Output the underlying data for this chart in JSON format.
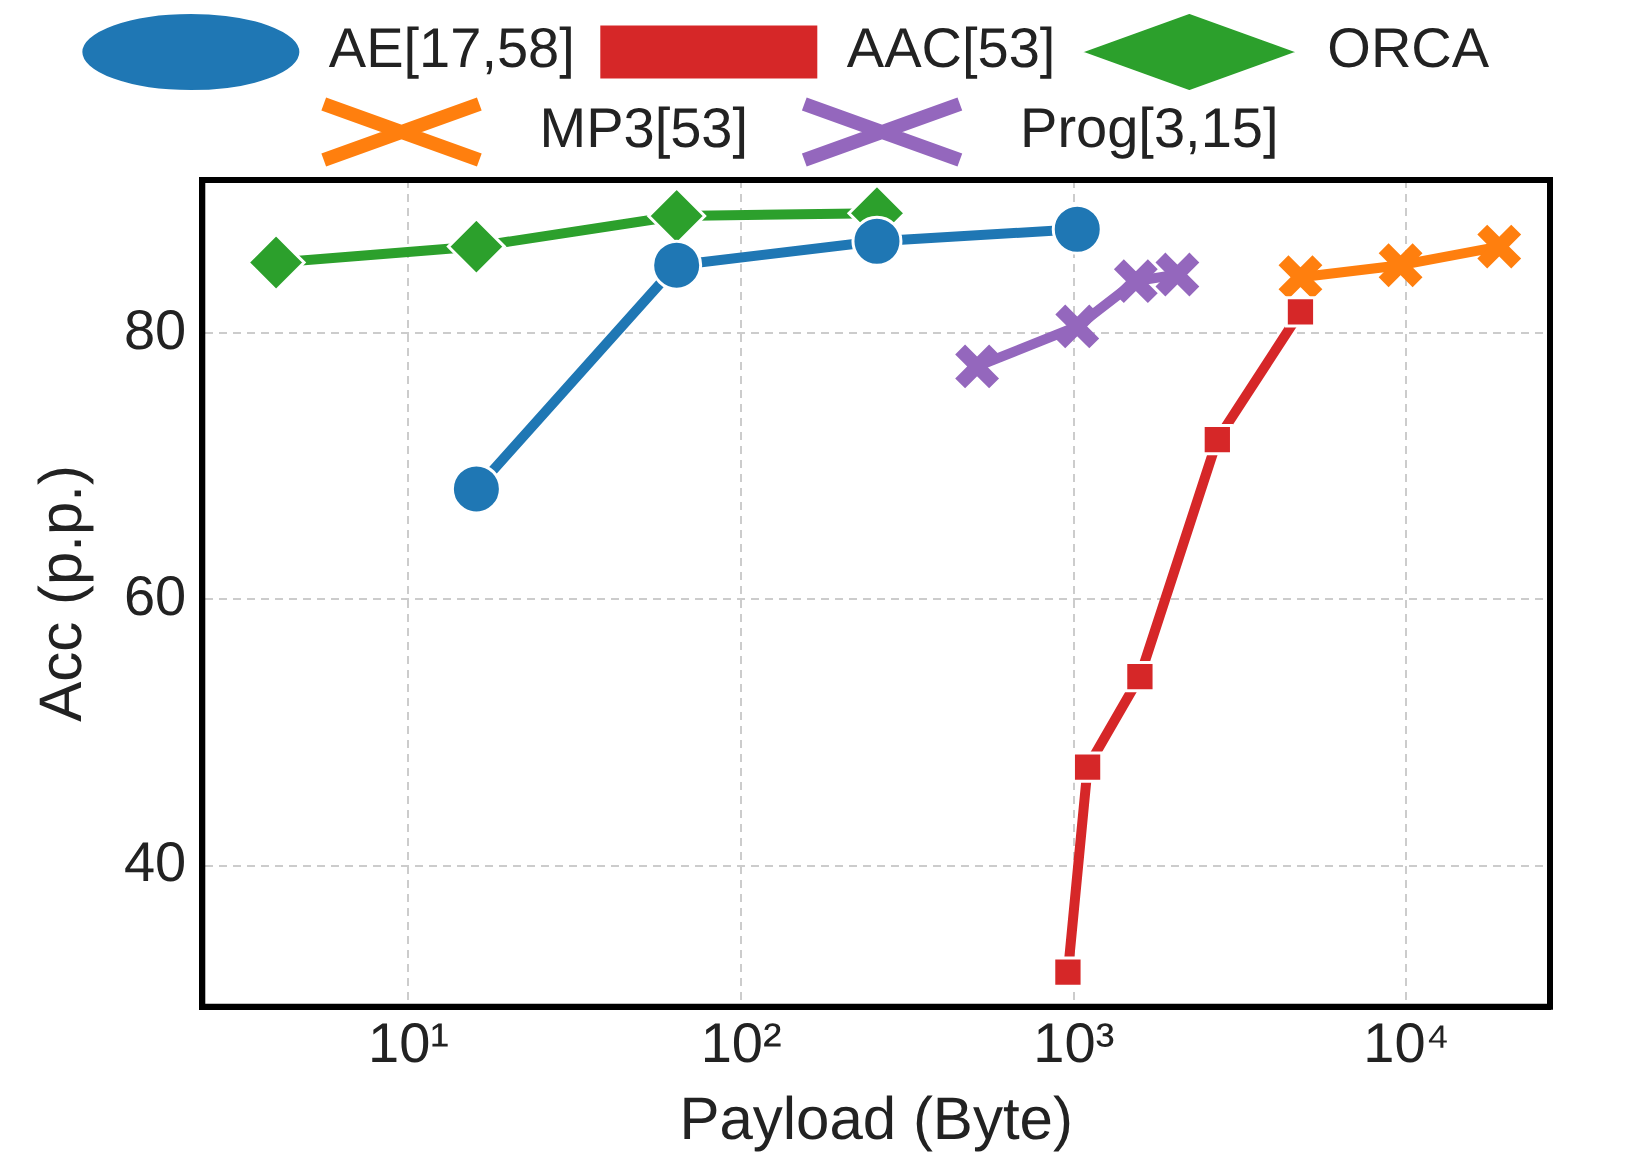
{
  "chart_data": {
    "type": "line",
    "xlabel": "Payload (Byte)",
    "ylabel": "Acc (p.p.)",
    "log": "x",
    "xlim": [
      2.4,
      27000
    ],
    "ylim": [
      29.4,
      91.5
    ],
    "xticks": [
      {
        "value": 10,
        "label": "10¹"
      },
      {
        "value": 100,
        "label": "10²"
      },
      {
        "value": 1000,
        "label": "10³"
      },
      {
        "value": 10000,
        "label": "10⁴"
      }
    ],
    "yticks": [
      40,
      60,
      80
    ],
    "grid": true,
    "legend": "top",
    "line_style": "solid",
    "series": [
      {
        "name": "AE[17,58]",
        "color": "#1f77b4",
        "marker": "circle",
        "x": [
          16,
          64,
          256,
          1024
        ],
        "values": [
          68.3,
          85.1,
          86.9,
          87.8
        ]
      },
      {
        "name": "AAC[53]",
        "color": "#d62728",
        "marker": "square",
        "x": [
          960,
          1100,
          1580,
          2700,
          4800
        ],
        "values": [
          32.0,
          47.4,
          54.2,
          72.0,
          81.6
        ]
      },
      {
        "name": "ORCA",
        "color": "#2ca02c",
        "marker": "diamond",
        "x": [
          4,
          16,
          64,
          256
        ],
        "values": [
          85.3,
          86.5,
          88.8,
          89.0
        ]
      },
      {
        "name": "MP3[53]",
        "color": "#ff7f0e",
        "marker": "cross",
        "x": [
          4800,
          9600,
          19000
        ],
        "values": [
          84.2,
          85.1,
          86.5
        ]
      },
      {
        "name": "Prog[3,15]",
        "color": "#9467bd",
        "marker": "cross",
        "x": [
          512,
          1024,
          1536,
          2048
        ],
        "values": [
          77.5,
          80.5,
          83.9,
          84.4
        ]
      }
    ]
  }
}
